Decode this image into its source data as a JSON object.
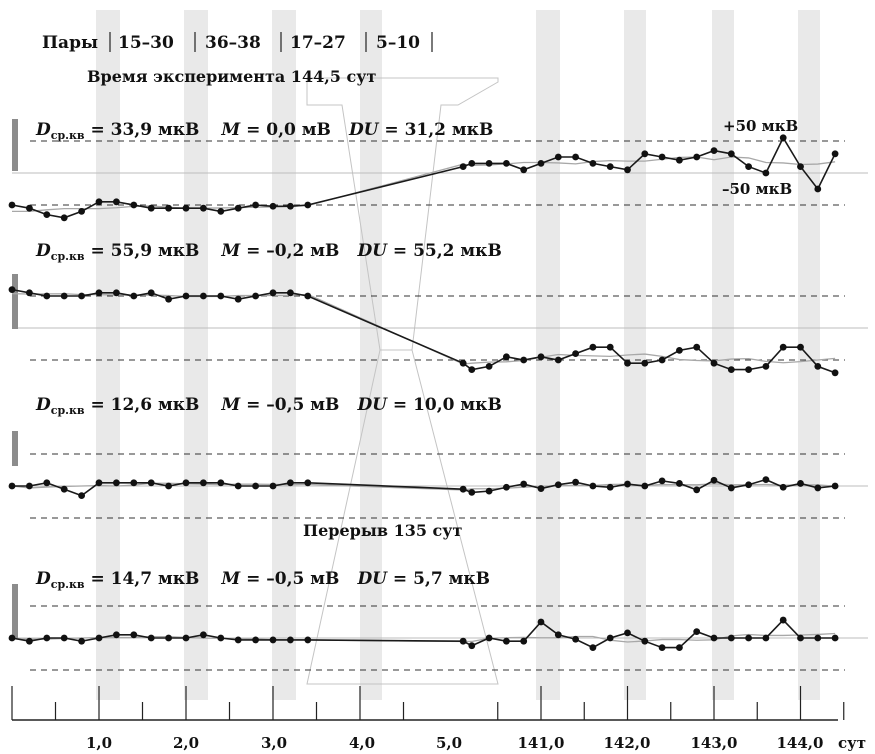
{
  "header": {
    "pairs_label": "Пары",
    "pairs": [
      "15–30",
      "36–38",
      "17–27",
      "5–10"
    ],
    "experiment_time": "Время эксперимента 144,5 сут",
    "break_label": "Перерыв 135 сут"
  },
  "scale_labels": {
    "plus": "+50 мкВ",
    "minus": "–50 мкВ"
  },
  "x_axis": {
    "ticks": [
      "1,0",
      "2,0",
      "3,0",
      "4,0",
      "5,0",
      "141,0",
      "142,0",
      "143,0",
      "144,0"
    ],
    "unit": "сут"
  },
  "chart_data": {
    "type": "line",
    "x": [
      0.0,
      0.2,
      0.4,
      0.6,
      0.8,
      1.0,
      1.2,
      1.4,
      1.6,
      1.8,
      2.0,
      2.2,
      2.4,
      2.6,
      2.8,
      3.0,
      3.2,
      3.4,
      140.1,
      140.2,
      140.4,
      140.6,
      140.8,
      141.0,
      141.2,
      141.4,
      141.6,
      141.8,
      142.0,
      142.2,
      142.4,
      142.6,
      142.8,
      143.0,
      143.2,
      143.4,
      143.6,
      143.8,
      144.0,
      144.2,
      144.4
    ],
    "x_ticks": [
      "1,0",
      "2,0",
      "3,0",
      "4,0",
      "5,0",
      "141,0",
      "142,0",
      "143,0",
      "144,0"
    ],
    "x_unit": "сут",
    "y_unit": "мкВ",
    "reference_lines": [
      50,
      -50
    ],
    "series": [
      {
        "stats": {
          "D": "33,9 мкВ",
          "M": "0,0 мВ",
          "DU": "31,2 мкВ"
        },
        "values": [
          -50,
          -55,
          -65,
          -70,
          -60,
          -45,
          -45,
          -50,
          -55,
          -55,
          -55,
          -55,
          -60,
          -55,
          -50,
          -52,
          -52,
          -50,
          10,
          15,
          15,
          15,
          5,
          15,
          25,
          25,
          15,
          10,
          5,
          30,
          25,
          20,
          25,
          35,
          30,
          10,
          0,
          55,
          10,
          -25,
          30
        ]
      },
      {
        "stats": {
          "D": "55,9 мкВ",
          "M": "–0,2 мВ",
          "DU": "55,2 мкВ"
        },
        "values": [
          60,
          55,
          50,
          50,
          50,
          55,
          55,
          50,
          55,
          45,
          50,
          50,
          50,
          45,
          50,
          55,
          55,
          50,
          -55,
          -65,
          -60,
          -45,
          -50,
          -45,
          -50,
          -40,
          -30,
          -30,
          -55,
          -55,
          -50,
          -35,
          -30,
          -55,
          -65,
          -65,
          -60,
          -30,
          -30,
          -60,
          -70
        ]
      },
      {
        "stats": {
          "D": "12,6 мкВ",
          "M": "–0,5 мВ",
          "DU": "10,0 мкВ"
        },
        "values": [
          0,
          0,
          5,
          -5,
          -15,
          5,
          5,
          5,
          5,
          0,
          5,
          5,
          5,
          0,
          0,
          0,
          5,
          5,
          -5,
          -10,
          -8,
          -2,
          3,
          -4,
          2,
          6,
          0,
          -2,
          3,
          0,
          8,
          4,
          -6,
          9,
          -3,
          2,
          10,
          -2,
          4,
          -3,
          0
        ]
      },
      {
        "stats": {
          "D": "14,7 мкВ",
          "M": "–0,5 мВ",
          "DU": "5,7 мкВ"
        },
        "values": [
          0,
          -5,
          0,
          0,
          -5,
          0,
          5,
          5,
          0,
          0,
          0,
          5,
          0,
          -3,
          -3,
          -3,
          -3,
          -3,
          -5,
          -12,
          0,
          -5,
          -5,
          25,
          5,
          -2,
          -15,
          0,
          8,
          -5,
          -15,
          -15,
          10,
          0,
          0,
          0,
          0,
          28,
          0,
          0,
          0
        ]
      }
    ]
  }
}
